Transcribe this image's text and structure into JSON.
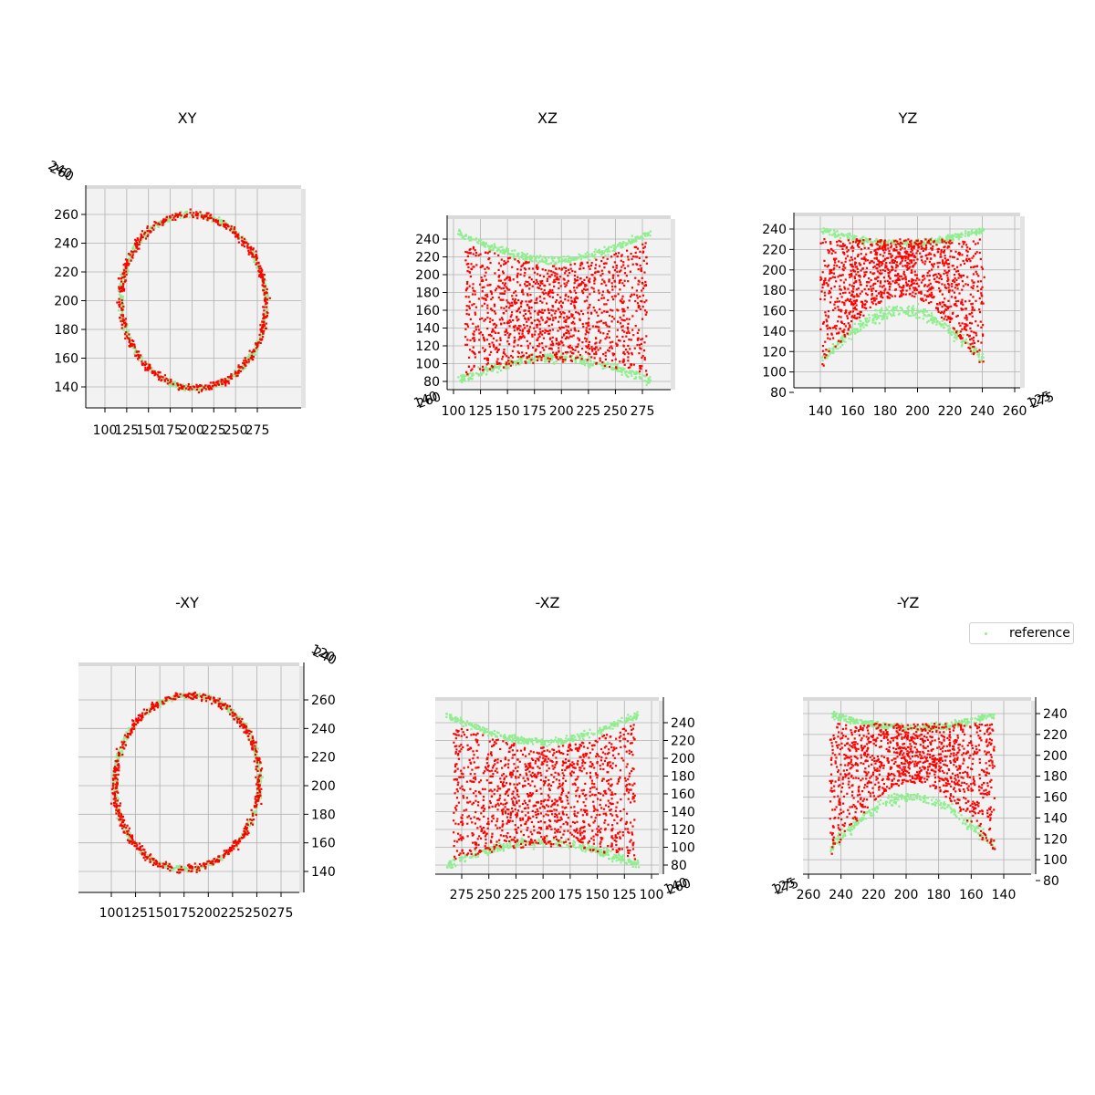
{
  "colors": {
    "reference": "#90ee90",
    "prediction": "#ff0000",
    "pane": "#f2f2f2",
    "grid": "#b0b0b0"
  },
  "legend": {
    "label": "reference",
    "placement": "upper-right of last panel"
  },
  "chart_data": [
    {
      "type": "scatter",
      "title": "XY",
      "view": "xy",
      "xticks": [
        100,
        125,
        150,
        175,
        200,
        225,
        250,
        275
      ],
      "yticks": [
        140,
        160,
        180,
        200,
        220,
        240,
        260
      ],
      "xlim": [
        85,
        295
      ],
      "ylim": [
        125,
        270
      ],
      "depth_tick_labels": [
        "240",
        "260"
      ],
      "grid": true
    },
    {
      "type": "scatter",
      "title": "XZ",
      "view": "xz",
      "xticks": [
        100,
        125,
        150,
        175,
        200,
        225,
        250,
        275
      ],
      "yticks": [
        80,
        100,
        120,
        140,
        160,
        180,
        200,
        220,
        240
      ],
      "xlim": [
        90,
        292
      ],
      "ylim": [
        78,
        250
      ],
      "depth_tick_labels": [
        "140",
        "260"
      ],
      "grid": true
    },
    {
      "type": "scatter",
      "title": "YZ",
      "view": "yz",
      "xticks": [
        140,
        160,
        180,
        200,
        220,
        240,
        260
      ],
      "yticks": [
        80,
        100,
        120,
        140,
        160,
        180,
        200,
        220,
        240
      ],
      "xlim": [
        125,
        270
      ],
      "ylim": [
        78,
        250
      ],
      "depth_tick_labels": [
        "125",
        "275"
      ],
      "grid": true
    },
    {
      "type": "scatter",
      "title": "-XY",
      "view": "-xy",
      "xticks": [
        275,
        250,
        225,
        200,
        175,
        150,
        125,
        100
      ],
      "yticks": [
        140,
        160,
        180,
        200,
        220,
        240,
        260
      ],
      "xlim": [
        295,
        85
      ],
      "ylim": [
        125,
        270
      ],
      "depth_tick_labels": [
        "120",
        "240"
      ],
      "grid": true
    },
    {
      "type": "scatter",
      "title": "-XZ",
      "view": "-xz",
      "xticks": [
        275,
        250,
        225,
        200,
        175,
        150,
        125,
        100
      ],
      "yticks": [
        80,
        100,
        120,
        140,
        160,
        180,
        200,
        220,
        240
      ],
      "xlim": [
        292,
        90
      ],
      "ylim": [
        78,
        250
      ],
      "depth_tick_labels": [
        "140",
        "260"
      ],
      "grid": true
    },
    {
      "type": "scatter",
      "title": "-YZ",
      "view": "-yz",
      "xticks": [
        260,
        240,
        220,
        200,
        180,
        160,
        140
      ],
      "yticks": [
        80,
        100,
        120,
        140,
        160,
        180,
        200,
        220,
        240
      ],
      "xlim": [
        270,
        125
      ],
      "ylim": [
        78,
        250
      ],
      "depth_tick_labels": [
        "125",
        "275"
      ],
      "grid": true
    }
  ]
}
